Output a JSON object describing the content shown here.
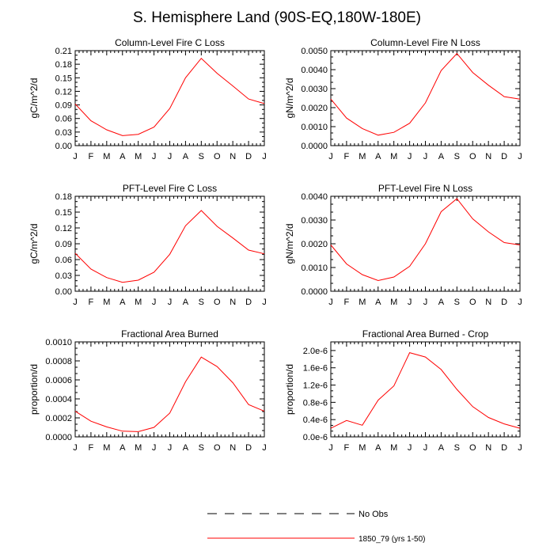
{
  "title": "S. Hemisphere Land (90S-EQ,180W-180E)",
  "colors": {
    "series": "#ff0000",
    "axis": "#000000"
  },
  "chart_data": [
    {
      "type": "line",
      "title": "Column-Level Fire C Loss",
      "ylabel": "gC/m^2/d",
      "categories": [
        "J",
        "F",
        "M",
        "A",
        "M",
        "J",
        "J",
        "A",
        "S",
        "O",
        "N",
        "D",
        "J"
      ],
      "ylim": [
        0,
        0.21
      ],
      "yticks": [
        "0.00",
        "0.03",
        "0.06",
        "0.09",
        "0.12",
        "0.15",
        "0.18",
        "0.21"
      ],
      "ytick_values": [
        0,
        0.03,
        0.06,
        0.09,
        0.12,
        0.15,
        0.18,
        0.21
      ],
      "values": [
        0.092,
        0.055,
        0.035,
        0.022,
        0.025,
        0.041,
        0.082,
        0.15,
        0.193,
        0.16,
        0.132,
        0.103,
        0.093
      ]
    },
    {
      "type": "line",
      "title": "Column-Level Fire N Loss",
      "ylabel": "gN/m^2/d",
      "categories": [
        "J",
        "F",
        "M",
        "A",
        "M",
        "J",
        "J",
        "A",
        "S",
        "O",
        "N",
        "D",
        "J"
      ],
      "ylim": [
        0,
        0.005
      ],
      "yticks": [
        "0.0000",
        "0.0010",
        "0.0020",
        "0.0030",
        "0.0040",
        "0.0050"
      ],
      "ytick_values": [
        0,
        0.001,
        0.002,
        0.003,
        0.004,
        0.005
      ],
      "values": [
        0.00245,
        0.00145,
        0.0009,
        0.00055,
        0.0007,
        0.00118,
        0.00225,
        0.00395,
        0.00485,
        0.00385,
        0.00318,
        0.00258,
        0.00245
      ]
    },
    {
      "type": "line",
      "title": "PFT-Level Fire C Loss",
      "ylabel": "gC/m^2/d",
      "categories": [
        "J",
        "F",
        "M",
        "A",
        "M",
        "J",
        "J",
        "A",
        "S",
        "O",
        "N",
        "D",
        "J"
      ],
      "ylim": [
        0,
        0.18
      ],
      "yticks": [
        "0.00",
        "0.03",
        "0.06",
        "0.09",
        "0.12",
        "0.15",
        "0.18"
      ],
      "ytick_values": [
        0,
        0.03,
        0.06,
        0.09,
        0.12,
        0.15,
        0.18
      ],
      "values": [
        0.072,
        0.042,
        0.026,
        0.017,
        0.021,
        0.036,
        0.07,
        0.124,
        0.153,
        0.123,
        0.101,
        0.078,
        0.071
      ]
    },
    {
      "type": "line",
      "title": "PFT-Level Fire N Loss",
      "ylabel": "gN/m^2/d",
      "categories": [
        "J",
        "F",
        "M",
        "A",
        "M",
        "J",
        "J",
        "A",
        "S",
        "O",
        "N",
        "D",
        "J"
      ],
      "ylim": [
        0,
        0.004
      ],
      "yticks": [
        "0.0000",
        "0.0010",
        "0.0020",
        "0.0030",
        "0.0040"
      ],
      "ytick_values": [
        0,
        0.001,
        0.002,
        0.003,
        0.004
      ],
      "values": [
        0.00195,
        0.00115,
        0.0007,
        0.00045,
        0.0006,
        0.00105,
        0.002,
        0.00335,
        0.0039,
        0.00305,
        0.0025,
        0.00205,
        0.00195
      ]
    },
    {
      "type": "line",
      "title": "Fractional Area Burned",
      "ylabel": "proportion/d",
      "categories": [
        "J",
        "F",
        "M",
        "A",
        "M",
        "J",
        "J",
        "A",
        "S",
        "O",
        "N",
        "D",
        "J"
      ],
      "ylim": [
        0,
        0.001
      ],
      "yticks": [
        "0.0000",
        "0.0002",
        "0.0004",
        "0.0006",
        "0.0008",
        "0.0010"
      ],
      "ytick_values": [
        0,
        0.0002,
        0.0004,
        0.0006,
        0.0008,
        0.001
      ],
      "values": [
        0.00027,
        0.000165,
        0.000105,
        6e-05,
        5.5e-05,
        0.0001,
        0.00025,
        0.00058,
        0.00084,
        0.00074,
        0.00057,
        0.00034,
        0.00027
      ]
    },
    {
      "type": "line",
      "title": "Fractional Area Burned - Crop",
      "ylabel": "proportion/d",
      "categories": [
        "J",
        "F",
        "M",
        "A",
        "M",
        "J",
        "J",
        "A",
        "S",
        "O",
        "N",
        "D",
        "J"
      ],
      "ylim": [
        0,
        2.2e-06
      ],
      "yticks": [
        "0.0e-6",
        "0.4e-6",
        "0.8e-6",
        "1.2e-6",
        "1.6e-6",
        "2.0e-6"
      ],
      "ytick_values": [
        0,
        4e-07,
        8e-07,
        1.2e-06,
        1.6e-06,
        2e-06
      ],
      "values": [
        2e-07,
        3.8e-07,
        2.7e-07,
        8.5e-07,
        1.18e-06,
        1.95e-06,
        1.85e-06,
        1.56e-06,
        1.1e-06,
        7e-07,
        4.5e-07,
        3e-07,
        2e-07
      ]
    }
  ],
  "legend": {
    "items": [
      {
        "label": "No Obs",
        "style": "dashed"
      },
      {
        "label": "1850_79 (yrs 1-50)",
        "style": "solid"
      }
    ]
  }
}
